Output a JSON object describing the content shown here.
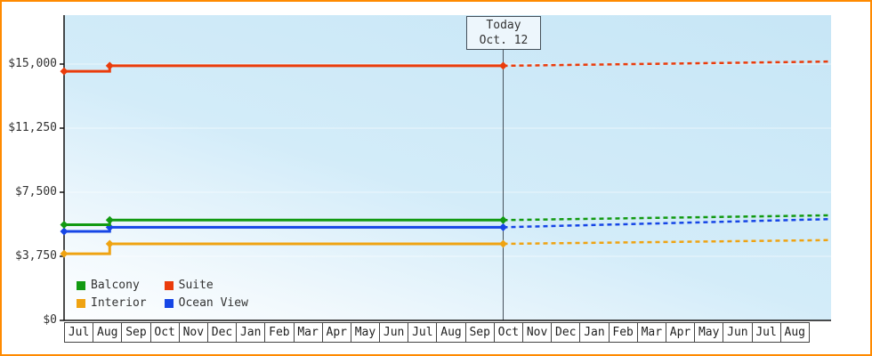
{
  "window": {
    "border_color": "#ff8a00"
  },
  "chart_data": {
    "type": "line",
    "title": "",
    "y_ticks": [
      {
        "label": "$0",
        "value": 0
      },
      {
        "label": "$3,750",
        "value": 3750
      },
      {
        "label": "$7,500",
        "value": 7500
      },
      {
        "label": "$11,250",
        "value": 11250
      },
      {
        "label": "$15,000",
        "value": 15000
      }
    ],
    "ylim": [
      0,
      17900
    ],
    "x_labels": [
      "Jul",
      "Aug",
      "Sep",
      "Oct",
      "Nov",
      "Dec",
      "Jan",
      "Feb",
      "Mar",
      "Apr",
      "May",
      "Jun",
      "Jul",
      "Aug",
      "Sep",
      "Oct",
      "Nov",
      "Dec",
      "Jan",
      "Feb",
      "Mar",
      "Apr",
      "May",
      "Jun",
      "Jul",
      "Aug"
    ],
    "x_max_units": 26.9,
    "today": {
      "line1": "Today",
      "line2": "Oct. 12",
      "x_units": 15.4
    },
    "grid": "faint-horizontal",
    "background": {
      "top": "#c7e6f6",
      "bottom": "#fdfeff"
    },
    "series": [
      {
        "name": "Interior",
        "color": "#efa312",
        "history": [
          [
            0,
            3900
          ],
          [
            1.6,
            3900
          ],
          [
            1.6,
            4480
          ],
          [
            15.4,
            4480
          ]
        ],
        "forecast": [
          [
            15.4,
            4480
          ],
          [
            26.9,
            4700
          ]
        ],
        "markers": [
          [
            0,
            3900
          ],
          [
            1.6,
            4480
          ],
          [
            15.4,
            4480
          ]
        ]
      },
      {
        "name": "Ocean View",
        "color": "#1646e6",
        "history": [
          [
            0,
            5210
          ],
          [
            1.6,
            5210
          ],
          [
            1.6,
            5450
          ],
          [
            15.4,
            5450
          ]
        ],
        "forecast": [
          [
            15.4,
            5450
          ],
          [
            26.9,
            5930
          ]
        ],
        "markers": [
          [
            0,
            5210
          ],
          [
            1.6,
            5450
          ],
          [
            15.4,
            5450
          ]
        ]
      },
      {
        "name": "Balcony",
        "color": "#129a12",
        "history": [
          [
            0,
            5600
          ],
          [
            1.6,
            5600
          ],
          [
            1.6,
            5870
          ],
          [
            15.4,
            5870
          ]
        ],
        "forecast": [
          [
            15.4,
            5870
          ],
          [
            26.9,
            6150
          ]
        ],
        "markers": [
          [
            0,
            5600
          ],
          [
            1.6,
            5870
          ],
          [
            15.4,
            5870
          ]
        ]
      },
      {
        "name": "Suite",
        "color": "#ea3c0c",
        "history": [
          [
            0,
            14580
          ],
          [
            1.6,
            14580
          ],
          [
            1.6,
            14900
          ],
          [
            15.4,
            14900
          ]
        ],
        "forecast": [
          [
            15.4,
            14900
          ],
          [
            26.9,
            15150
          ]
        ],
        "markers": [
          [
            0,
            14580
          ],
          [
            1.6,
            14900
          ],
          [
            15.4,
            14900
          ]
        ]
      }
    ],
    "legend": {
      "position": "bottom-left",
      "items": [
        {
          "label": "Balcony",
          "color": "#129a12"
        },
        {
          "label": "Suite",
          "color": "#ea3c0c"
        },
        {
          "label": "Interior",
          "color": "#efa312"
        },
        {
          "label": "Ocean View",
          "color": "#1646e6"
        }
      ]
    }
  }
}
